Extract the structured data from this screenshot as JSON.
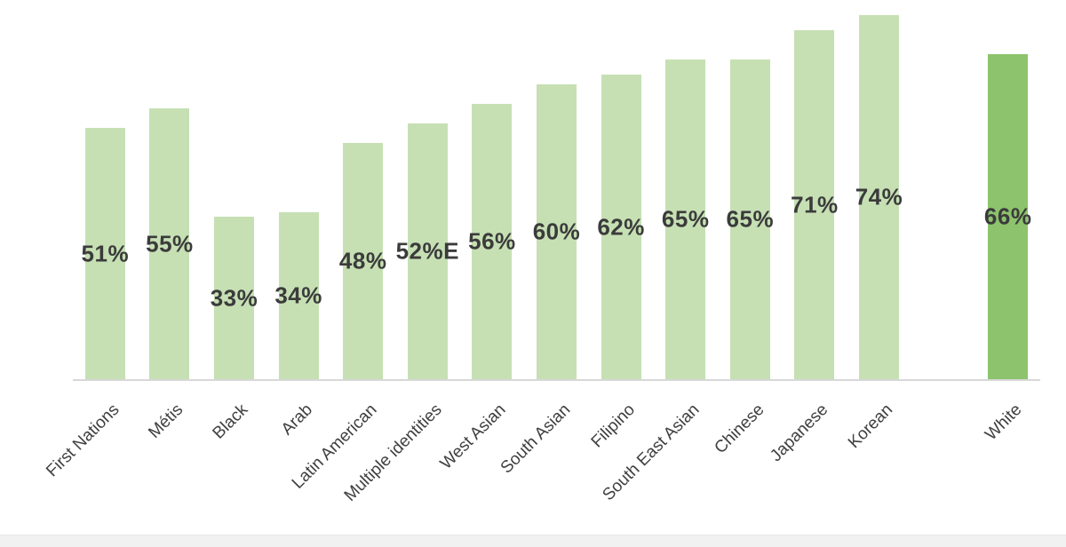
{
  "chart_data": {
    "type": "bar",
    "categories": [
      "First Nations",
      "Métis",
      "Black",
      "Arab",
      "Latin American",
      "Multiple identities",
      "West Asian",
      "South Asian",
      "Filipino",
      "South East Asian",
      "Chinese",
      "Japanese",
      "Korean",
      "White"
    ],
    "values": [
      51,
      55,
      33,
      34,
      48,
      52,
      56,
      60,
      62,
      65,
      65,
      71,
      74,
      66
    ],
    "value_labels": [
      "51%",
      "55%",
      "33%",
      "34%",
      "48%",
      "52%E",
      "56%",
      "60%",
      "62%",
      "65%",
      "65%",
      "71%",
      "74%",
      "66%"
    ],
    "title": "",
    "xlabel": "",
    "ylabel": "",
    "ylim": [
      0,
      77
    ],
    "grid": false,
    "legend": false,
    "value_label_position": "inside-center",
    "category_label_rotation_deg": 45,
    "bar_color": "#C6E0B4",
    "highlight_category": "White",
    "highlight_color": "#8CC36C",
    "separator_gap_before": "White",
    "value_label_color": "#3B3B3B",
    "category_label_color": "#404040",
    "axis_line_color": "#D8D8D8",
    "bottom_strip_color": "#F1F1F2"
  }
}
